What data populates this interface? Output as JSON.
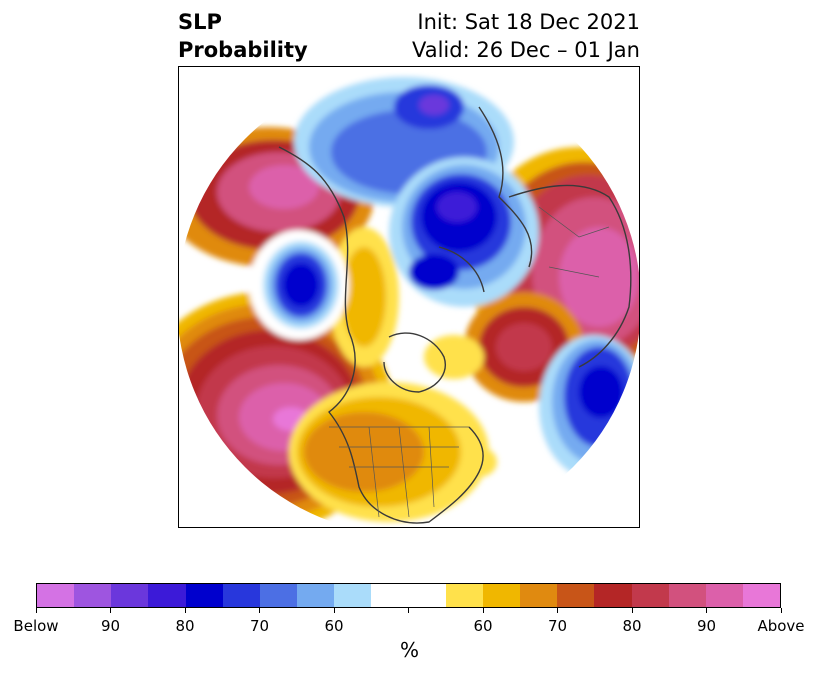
{
  "title": {
    "left_line1": "SLP",
    "left_line2": "Probability",
    "right_line1": "Init: Sat 18 Dec 2021",
    "right_line2": "Valid: 26 Dec – 01 Jan"
  },
  "colorbar": {
    "colors": [
      "#d472e4",
      "#9e55e0",
      "#6b37dc",
      "#3c1ad8",
      "#0000cd",
      "#2837dc",
      "#4c6fe4",
      "#74aaf0",
      "#aadcfa",
      "#ffffff",
      "#ffffff",
      "#ffe14b",
      "#f0b700",
      "#e08a10",
      "#c85518",
      "#b42626",
      "#c2394c",
      "#d2517e",
      "#dc60aa",
      "#e877d8"
    ],
    "tick_labels": [
      "Below",
      "90",
      "80",
      "70",
      "60",
      "",
      "60",
      "70",
      "80",
      "90",
      "Above"
    ],
    "unit_label": "%"
  },
  "map": {
    "anomalies": [
      {
        "sign": "above",
        "peak": 95,
        "region": "eastern North Pacific"
      },
      {
        "sign": "above",
        "peak": 85,
        "region": "Alaska"
      },
      {
        "sign": "above",
        "peak": 90,
        "region": "northern Europe and Russia"
      },
      {
        "sign": "above",
        "peak": 75,
        "region": "central United States"
      },
      {
        "sign": "above",
        "peak": 80,
        "region": "North Atlantic"
      },
      {
        "sign": "below",
        "peak": 85,
        "region": "Bering Sea / Siberia"
      },
      {
        "sign": "below",
        "peak": 90,
        "region": "Arctic Ocean / Barents Sea"
      },
      {
        "sign": "below",
        "peak": 90,
        "region": "Baffin Bay / northern Canada"
      },
      {
        "sign": "below",
        "peak": 90,
        "region": "mid-Atlantic near Azores"
      }
    ]
  }
}
